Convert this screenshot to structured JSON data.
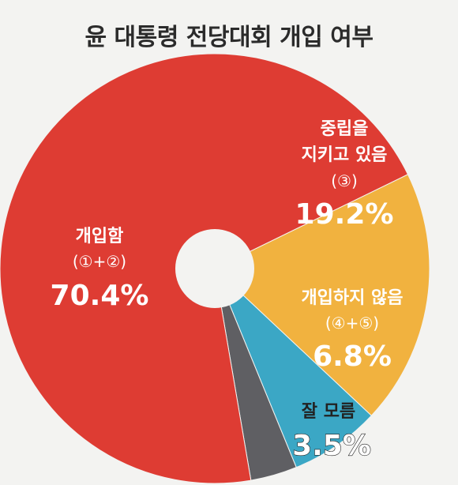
{
  "chart_data": {
    "type": "pie",
    "title": "윤 대통령 전당대회 개입 여부",
    "donut": true,
    "slices": [
      {
        "label": "개입함",
        "code": "(①+②)",
        "value": 70.4,
        "display": "70.4%",
        "color": "#de3c33"
      },
      {
        "label": "중립을 지키고 있음",
        "code": "(③)",
        "value": 19.2,
        "display": "19.2%",
        "color": "#f1b23f"
      },
      {
        "label": "개입하지 않음",
        "code": "(④+⑤)",
        "value": 6.8,
        "display": "6.8%",
        "color": "#3ba7c5"
      },
      {
        "label": "잘 모름",
        "code": "",
        "value": 3.5,
        "display": "3.5%",
        "color": "#5f5f63"
      }
    ]
  },
  "labels": {
    "s0_line1": "개입함",
    "s1_line1": "중립을",
    "s1_line2": "지키고 있음",
    "s2_line1": "개입하지 않음",
    "s3_line1": "잘 모름"
  }
}
